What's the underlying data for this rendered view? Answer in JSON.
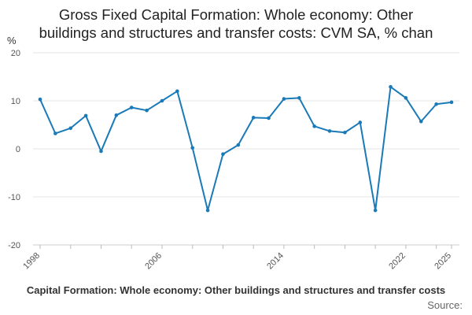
{
  "chart_data": {
    "type": "line",
    "title_lines": [
      "Gross Fixed Capital Formation: Whole economy: Other",
      "buildings and structures and transfer costs: CVM SA, % chan"
    ],
    "ylabel": "%",
    "x": [
      1998,
      1999,
      2000,
      2001,
      2002,
      2003,
      2004,
      2005,
      2006,
      2007,
      2008,
      2009,
      2010,
      2011,
      2012,
      2013,
      2014,
      2015,
      2016,
      2017,
      2018,
      2019,
      2020,
      2021,
      2022,
      2023,
      2024,
      2025
    ],
    "series": [
      {
        "values": [
          10.3,
          3.2,
          4.3,
          6.9,
          -0.5,
          7.0,
          8.6,
          8.0,
          10.0,
          12.0,
          0.2,
          -12.8,
          -1.1,
          0.8,
          6.5,
          6.4,
          10.4,
          10.6,
          4.7,
          3.7,
          3.4,
          5.5,
          -12.8,
          12.9,
          10.6,
          5.7,
          9.3,
          9.7
        ]
      }
    ],
    "xticks": [
      1998,
      2006,
      2014,
      2022,
      2025
    ],
    "yticks": [
      20,
      10,
      0,
      -10,
      -20
    ],
    "ylim": [
      -20,
      20
    ],
    "xlim": [
      1998,
      2025
    ],
    "grid": true,
    "line_color": "#1a7ab8",
    "footer_text": "Capital Formation: Whole economy: Other buildings and structures and transfer costs",
    "source_label": "Source:"
  }
}
